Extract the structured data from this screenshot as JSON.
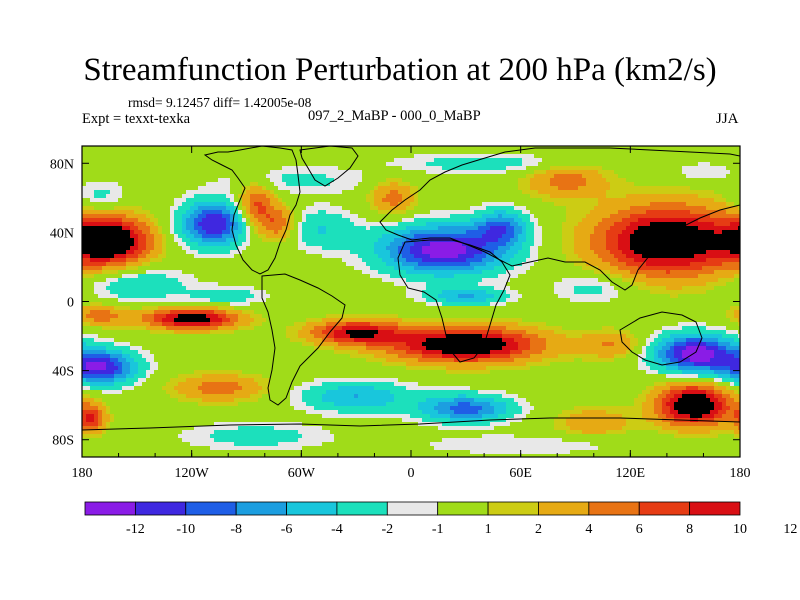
{
  "chart_data": {
    "type": "heatmap",
    "title": "Streamfunction Perturbation at 200 hPa (km2/s)",
    "stats_line": "rmsd= 9.12457 diff= 1.42005e-08",
    "left_label": "Expt = texxt-texka",
    "center_label": "097_2_MaBP - 000_0_MaBP",
    "right_label": "JJA",
    "x_range": [
      -180,
      180
    ],
    "y_range": [
      -90,
      90
    ],
    "x_ticks": [
      {
        "value": -180,
        "label": "180"
      },
      {
        "value": -120,
        "label": "120W"
      },
      {
        "value": -60,
        "label": "60W"
      },
      {
        "value": 0,
        "label": "0"
      },
      {
        "value": 60,
        "label": "60E"
      },
      {
        "value": 120,
        "label": "120E"
      },
      {
        "value": 180,
        "label": "180"
      }
    ],
    "y_ticks": [
      {
        "value": 80,
        "label": "80N"
      },
      {
        "value": 40,
        "label": "40N"
      },
      {
        "value": 0,
        "label": "0"
      },
      {
        "value": -40,
        "label": "40S"
      },
      {
        "value": -80,
        "label": "80S"
      }
    ],
    "colorbar": {
      "colors": [
        "#8a1ce6",
        "#3f28e0",
        "#1f5ee6",
        "#1c9ee0",
        "#19c6dc",
        "#1ce0bc",
        "#e8e8e8",
        "#a0dc19",
        "#cccc14",
        "#e6aa14",
        "#e87314",
        "#e63c14",
        "#d90f14"
      ],
      "labels": [
        "-12",
        "-10",
        "-8",
        "-6",
        "-4",
        "-2",
        "-1",
        "1",
        "2",
        "4",
        "6",
        "8",
        "10",
        "12"
      ]
    },
    "features": [
      {
        "lon": -165,
        "lat": 35,
        "value": 13.5,
        "rlon": 22,
        "rlat": 14
      },
      {
        "lon": -150,
        "lat": 10,
        "value": -4,
        "rlon": 28,
        "rlat": 10
      },
      {
        "lon": -170,
        "lat": 60,
        "value": -3,
        "rlon": 15,
        "rlat": 10
      },
      {
        "lon": -108,
        "lat": 45,
        "value": -12,
        "rlon": 18,
        "rlat": 13
      },
      {
        "lon": -85,
        "lat": 55,
        "value": 7,
        "rlon": 10,
        "rlat": 14
      },
      {
        "lon": -72,
        "lat": 45,
        "value": 6,
        "rlon": 10,
        "rlat": 10
      },
      {
        "lon": -62,
        "lat": 70,
        "value": -2.5,
        "rlon": 40,
        "rlat": 8
      },
      {
        "lon": -50,
        "lat": 42,
        "value": -4,
        "rlon": 20,
        "rlat": 12
      },
      {
        "lon": -10,
        "lat": 60,
        "value": 5,
        "rlon": 12,
        "rlat": 10
      },
      {
        "lon": 18,
        "lat": 30,
        "value": -13.5,
        "rlon": 34,
        "rlat": 14
      },
      {
        "lon": 50,
        "lat": 43,
        "value": -8,
        "rlon": 14,
        "rlat": 10
      },
      {
        "lon": 40,
        "lat": 80,
        "value": -3,
        "rlon": 50,
        "rlat": 6
      },
      {
        "lon": 140,
        "lat": 35,
        "value": 13.5,
        "rlon": 38,
        "rlat": 20
      },
      {
        "lon": 85,
        "lat": 70,
        "value": 5,
        "rlon": 22,
        "rlat": 10
      },
      {
        "lon": 160,
        "lat": 75,
        "value": -2,
        "rlon": 18,
        "rlat": 6
      },
      {
        "lon": 100,
        "lat": 8,
        "value": -3,
        "rlon": 22,
        "rlat": 9
      },
      {
        "lon": 30,
        "lat": 3,
        "value": -6,
        "rlon": 22,
        "rlat": 5
      },
      {
        "lon": -100,
        "lat": 3,
        "value": -3,
        "rlon": 22,
        "rlat": 6
      },
      {
        "lon": -120,
        "lat": -10,
        "value": 12,
        "rlon": 25,
        "rlat": 6
      },
      {
        "lon": -170,
        "lat": -8,
        "value": 5,
        "rlon": 15,
        "rlat": 6
      },
      {
        "lon": -30,
        "lat": -18,
        "value": 10,
        "rlon": 25,
        "rlat": 7
      },
      {
        "lon": 30,
        "lat": -25,
        "value": 13.5,
        "rlon": 40,
        "rlat": 10
      },
      {
        "lon": 110,
        "lat": -25,
        "value": 4,
        "rlon": 18,
        "rlat": 8
      },
      {
        "lon": 155,
        "lat": -30,
        "value": -13.5,
        "rlon": 22,
        "rlat": 11
      },
      {
        "lon": -170,
        "lat": -38,
        "value": -12,
        "rlon": 20,
        "rlat": 10
      },
      {
        "lon": -105,
        "lat": -50,
        "value": 5,
        "rlon": 25,
        "rlat": 8
      },
      {
        "lon": -30,
        "lat": -55,
        "value": -6,
        "rlon": 30,
        "rlat": 9
      },
      {
        "lon": 30,
        "lat": -62,
        "value": -9,
        "rlon": 25,
        "rlat": 8
      },
      {
        "lon": 155,
        "lat": -60,
        "value": 13.5,
        "rlon": 20,
        "rlat": 12
      },
      {
        "lon": 100,
        "lat": -70,
        "value": 4,
        "rlon": 20,
        "rlat": 8
      },
      {
        "lon": -175,
        "lat": -68,
        "value": 8,
        "rlon": 8,
        "rlat": 8
      },
      {
        "lon": -85,
        "lat": -78,
        "value": -3,
        "rlon": 40,
        "rlat": 8
      },
      {
        "lon": 60,
        "lat": -83,
        "value": -2,
        "rlon": 60,
        "rlat": 6
      }
    ]
  }
}
